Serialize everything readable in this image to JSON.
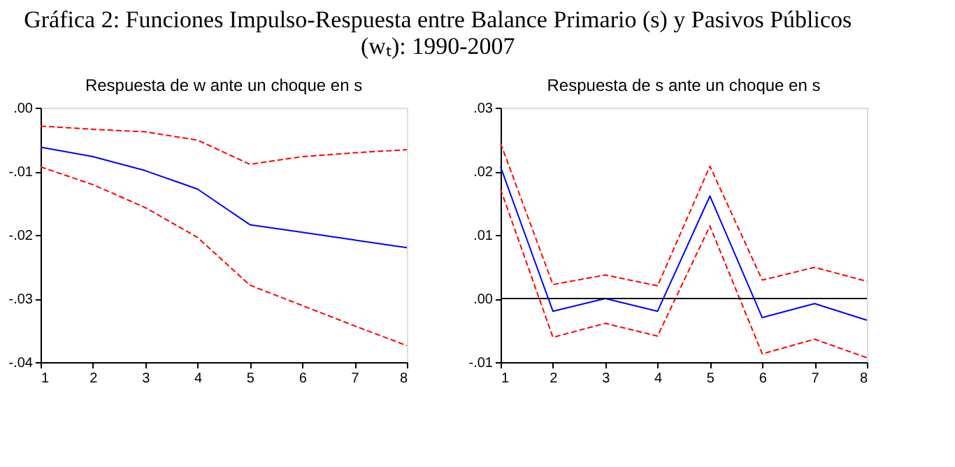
{
  "chart_data": [
    {
      "type": "line",
      "title": [
        "Gráfica 2: Funciones Impulso-Respuesta entre Balance Primario (s) y Pasivos Públicos",
        "(wₜ): 1990-2007"
      ],
      "subtitle": "Respuesta de w ante un choque en s",
      "x": [
        1,
        2,
        3,
        4,
        5,
        6,
        7,
        8
      ],
      "xlim": [
        1,
        8
      ],
      "xticks": [
        1,
        2,
        3,
        4,
        5,
        6,
        7,
        8
      ],
      "ylim": [
        -0.04,
        0.0
      ],
      "yticks": [
        {
          "value": -0.04,
          "label": "-.04"
        },
        {
          "value": -0.03,
          "label": "-.03"
        },
        {
          "value": -0.02,
          "label": "-.02"
        },
        {
          "value": -0.01,
          "label": "-.01"
        },
        {
          "value": 0.0,
          "label": ".00"
        }
      ],
      "grid": false,
      "series": [
        {
          "color": "#ff0000",
          "line_style": "dashed",
          "values": [
            -0.0029,
            -0.0034,
            -0.0038,
            -0.0051,
            -0.0089,
            -0.0077,
            -0.0071,
            -0.0066
          ]
        },
        {
          "color": "#0000ff",
          "line_style": "solid",
          "values": [
            -0.0062,
            -0.0077,
            -0.0099,
            -0.0128,
            -0.0184,
            -0.0196,
            -0.0208,
            -0.022
          ]
        },
        {
          "color": "#ff0000",
          "line_style": "dashed",
          "values": [
            -0.0093,
            -0.0121,
            -0.0157,
            -0.0204,
            -0.0279,
            -0.0311,
            -0.0343,
            -0.0374
          ]
        }
      ]
    },
    {
      "type": "line",
      "subtitle": "Respuesta de s ante un choque en s",
      "x": [
        1,
        2,
        3,
        4,
        5,
        6,
        7,
        8
      ],
      "xlim": [
        1,
        8
      ],
      "xticks": [
        1,
        2,
        3,
        4,
        5,
        6,
        7,
        8
      ],
      "ylim": [
        -0.01,
        0.03
      ],
      "yticks": [
        {
          "value": -0.01,
          "label": "-.01"
        },
        {
          "value": 0.0,
          "label": ".00"
        },
        {
          "value": 0.01,
          "label": ".01"
        },
        {
          "value": 0.02,
          "label": ".02"
        },
        {
          "value": 0.03,
          "label": ".03"
        }
      ],
      "grid": false,
      "ref_lines": [
        {
          "axis": "y",
          "value": 0.0,
          "color": "#000000",
          "line_style": "solid"
        }
      ],
      "series": [
        {
          "color": "#ff0000",
          "line_style": "dashed",
          "values": [
            0.0244,
            0.0022,
            0.0037,
            0.002,
            0.0208,
            0.0029,
            0.0049,
            0.0027
          ]
        },
        {
          "color": "#0000ff",
          "line_style": "solid",
          "values": [
            0.0207,
            -0.002,
            0.0,
            -0.002,
            0.0161,
            -0.003,
            -0.0008,
            -0.0034
          ]
        },
        {
          "color": "#ff0000",
          "line_style": "dashed",
          "values": [
            0.0172,
            -0.0061,
            -0.0039,
            -0.0059,
            0.0114,
            -0.0087,
            -0.0064,
            -0.0093
          ]
        }
      ]
    }
  ]
}
